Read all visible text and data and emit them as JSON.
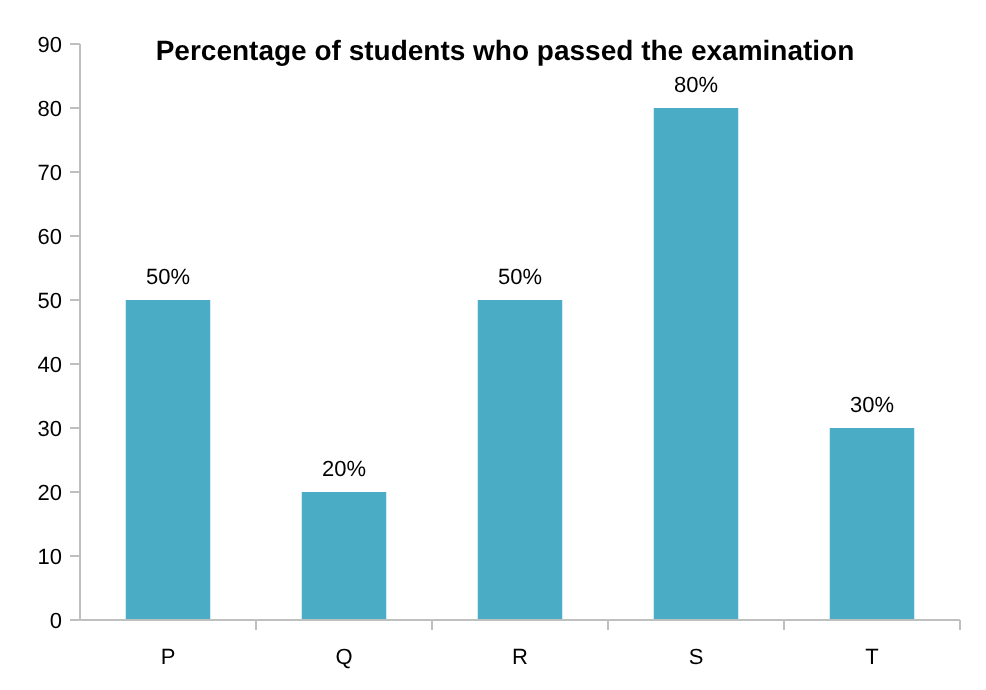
{
  "chart_data": {
    "type": "bar",
    "title": "Percentage of students who passed the examination",
    "categories": [
      "P",
      "Q",
      "R",
      "S",
      "T"
    ],
    "values": [
      50,
      20,
      50,
      80,
      30
    ],
    "value_labels": [
      "50%",
      "20%",
      "50%",
      "80%",
      "30%"
    ],
    "color": "#4bacc6",
    "ylim": [
      0,
      90
    ],
    "yticks": [
      0,
      10,
      20,
      30,
      40,
      50,
      60,
      70,
      80,
      90
    ],
    "grid": false
  }
}
